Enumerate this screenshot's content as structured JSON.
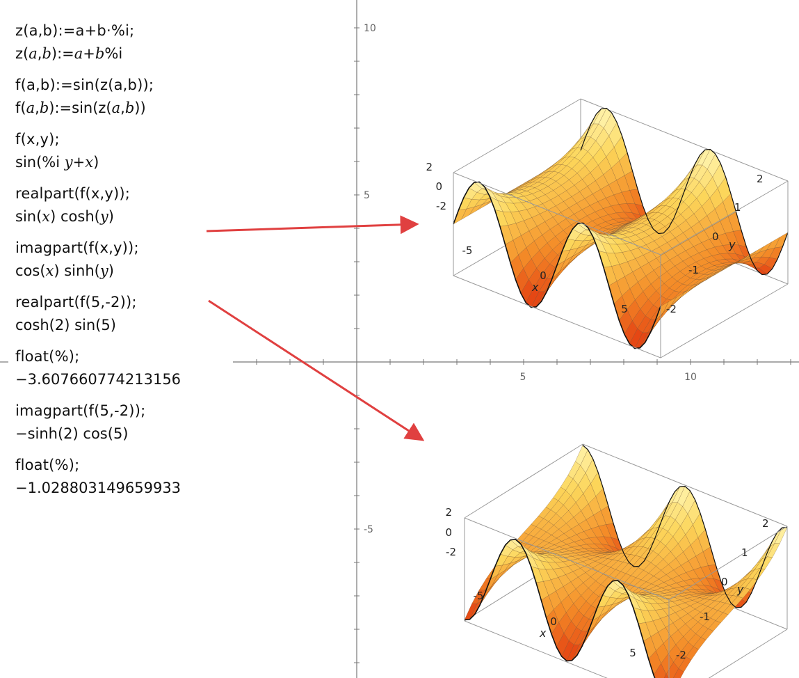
{
  "axes": {
    "x_ticks": [
      "5",
      "10"
    ],
    "y_ticks": [
      "10",
      "5",
      "-5"
    ]
  },
  "commands": [
    {
      "input": "z(a,b):=a+b·%i;",
      "output_html": "z(<i>a</i>,<i>b</i>):=<i>a</i>+<i>b</i>%i"
    },
    {
      "input": "f(a,b):=sin(z(a,b));",
      "output_html": "f(<i>a</i>,<i>b</i>):=sin(z(<i>a</i>,<i>b</i>))"
    },
    {
      "input": "f(x,y);",
      "output_html": "sin(%i <i>y</i>+<i>x</i>)"
    },
    {
      "input": "realpart(f(x,y));",
      "output_html": "sin(<i>x</i>) cosh(<i>y</i>)"
    },
    {
      "input": "imagpart(f(x,y));",
      "output_html": "cos(<i>x</i>) sinh(<i>y</i>)"
    },
    {
      "input": "realpart(f(5,-2));",
      "output_html": "cosh(2) sin(5)"
    },
    {
      "input": "float(%);",
      "output_html": "−3.607660774213156"
    },
    {
      "input": "imagpart(f(5,-2));",
      "output_html": "−sinh(2) cos(5)"
    },
    {
      "input": "float(%);",
      "output_html": "−1.028803149659933"
    }
  ],
  "plot_top": {
    "z_ticks": [
      "2",
      "0",
      "-2"
    ],
    "x_ticks": [
      "-5",
      "0",
      "5"
    ],
    "x_label": "x",
    "y_ticks": [
      "2",
      "1",
      "0",
      "-1",
      "-2"
    ],
    "y_label": "y"
  },
  "plot_bottom": {
    "z_ticks": [
      "2",
      "0",
      "-2"
    ],
    "x_ticks": [
      "-5",
      "0",
      "5"
    ],
    "x_label": "x",
    "y_ticks": [
      "2",
      "1",
      "0",
      "-1",
      "-2"
    ],
    "y_label": "y"
  },
  "colors": {
    "arrow": "#e04040",
    "axis": "#777777",
    "surface_high": "#fff6a0",
    "surface_low": "#e23a10"
  }
}
